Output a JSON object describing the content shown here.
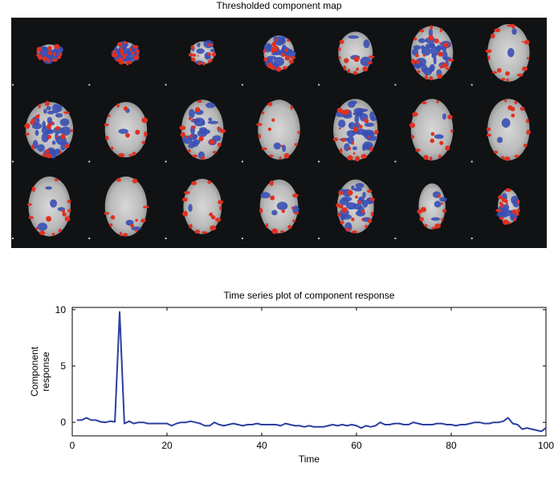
{
  "figure": {
    "map_title": "Thresholded component map",
    "colors": {
      "background": "#101214",
      "positive": "#e03020",
      "negative": "#3a4fb4",
      "line": "#2b3fa0"
    }
  },
  "brain_map": {
    "rows": 3,
    "cols": 7,
    "slice_count": 21
  },
  "chart_data": {
    "type": "line",
    "title": "Time series plot of component response",
    "xlabel": "Time",
    "ylabel": [
      "Component",
      "response"
    ],
    "xlim": [
      0,
      100
    ],
    "ylim": [
      -1.2,
      10.2
    ],
    "xticks": [
      0,
      20,
      40,
      60,
      80,
      100
    ],
    "yticks": [
      0,
      5,
      10
    ],
    "grid": false,
    "series": [
      {
        "x": [
          1,
          2,
          3,
          4,
          5,
          6,
          7,
          8,
          9,
          10,
          11,
          12,
          13,
          14,
          15,
          16,
          17,
          18,
          19,
          20,
          21,
          22,
          23,
          24,
          25,
          26,
          27,
          28,
          29,
          30,
          31,
          32,
          33,
          34,
          35,
          36,
          37,
          38,
          39,
          40,
          41,
          42,
          43,
          44,
          45,
          46,
          47,
          48,
          49,
          50,
          51,
          52,
          53,
          54,
          55,
          56,
          57,
          58,
          59,
          60,
          61,
          62,
          63,
          64,
          65,
          66,
          67,
          68,
          69,
          70,
          71,
          72,
          73,
          74,
          75,
          76,
          77,
          78,
          79,
          80,
          81,
          82,
          83,
          84,
          85,
          86,
          87,
          88,
          89,
          90,
          91,
          92,
          93,
          94,
          95,
          96,
          97,
          98,
          99,
          100
        ],
        "values": [
          0.2,
          0.2,
          0.4,
          0.2,
          0.2,
          0.05,
          0.0,
          0.1,
          0.05,
          9.8,
          -0.1,
          0.1,
          -0.1,
          0.0,
          0.0,
          -0.1,
          -0.1,
          -0.1,
          -0.1,
          -0.1,
          -0.3,
          -0.1,
          0.0,
          0.0,
          0.1,
          0.0,
          -0.1,
          -0.3,
          -0.3,
          0.0,
          -0.2,
          -0.3,
          -0.2,
          -0.1,
          -0.2,
          -0.3,
          -0.2,
          -0.2,
          -0.1,
          -0.2,
          -0.2,
          -0.2,
          -0.2,
          -0.3,
          -0.1,
          -0.2,
          -0.3,
          -0.3,
          -0.4,
          -0.3,
          -0.4,
          -0.4,
          -0.4,
          -0.3,
          -0.2,
          -0.3,
          -0.2,
          -0.3,
          -0.2,
          -0.3,
          -0.5,
          -0.3,
          -0.4,
          -0.3,
          0.0,
          -0.2,
          -0.2,
          -0.1,
          -0.1,
          -0.2,
          -0.2,
          0.0,
          -0.1,
          -0.2,
          -0.2,
          -0.2,
          -0.1,
          -0.1,
          -0.2,
          -0.2,
          -0.3,
          -0.2,
          -0.2,
          -0.1,
          0.0,
          0.0,
          -0.1,
          -0.1,
          0.0,
          0.0,
          0.1,
          0.4,
          -0.1,
          -0.2,
          -0.6,
          -0.5,
          -0.6,
          -0.7,
          -0.8,
          -0.5
        ]
      }
    ]
  }
}
